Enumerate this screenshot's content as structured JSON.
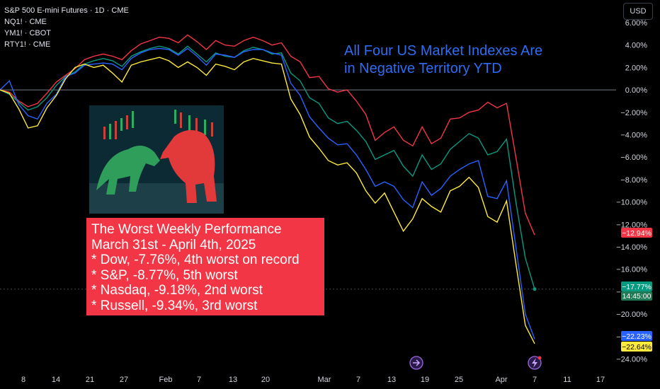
{
  "chart_data": {
    "type": "line",
    "symbols": [
      "S&P 500 E-mini Futures · 1D · CME",
      "NQ1! · CME",
      "YM1! · CBOT",
      "RTY1! · CME"
    ],
    "currency": "USD",
    "ylim": [
      -24,
      6
    ],
    "y_ticks": [
      "6.00%",
      "4.00%",
      "2.00%",
      "0.00%",
      "−2.00%",
      "−4.00%",
      "−6.00%",
      "−8.00%",
      "−10.00%",
      "−12.00%",
      "−14.00%",
      "−16.00%",
      "−18.00%",
      "−20.00%",
      "−22.00%",
      "−24.00%"
    ],
    "x_ticks": [
      "8",
      "14",
      "21",
      "27",
      "Feb",
      "7",
      "13",
      "20",
      "Mar",
      "7",
      "13",
      "19",
      "25",
      "Apr",
      "7",
      "11",
      "17"
    ],
    "series": [
      {
        "name": "YM1!",
        "color": "#f23645",
        "values": [
          0,
          -0.2,
          -1.0,
          -1.5,
          -1.2,
          -0.3,
          0.7,
          1.3,
          1.9,
          2.7,
          3.0,
          3.2,
          3.0,
          2.7,
          3.5,
          4.1,
          4.4,
          4.7,
          4.6,
          4.2,
          4.9,
          4.3,
          3.6,
          4.4,
          4.0,
          3.9,
          4.4,
          4.7,
          4.4,
          4.0,
          4.2,
          3.0,
          2.5,
          1.1,
          1.2,
          0.1,
          -0.2,
          0.0,
          -1.0,
          -2.2,
          -4.5,
          -3.8,
          -3.3,
          -4.5,
          -5.0,
          -3.3,
          -4.8,
          -4.3,
          -2.6,
          -2.5,
          -2.0,
          -1.8,
          -1.1,
          -1.6,
          -1.2,
          -6.0,
          -11.0,
          -12.94
        ],
        "last_label": "−12.94%"
      },
      {
        "name": "S&P 500",
        "color": "#089981",
        "values": [
          0,
          -0.4,
          -1.1,
          -1.8,
          -1.5,
          -0.7,
          0.4,
          1.2,
          1.6,
          2.3,
          2.6,
          2.8,
          2.6,
          2.1,
          3.0,
          3.4,
          3.7,
          3.9,
          3.7,
          3.2,
          3.9,
          3.2,
          2.5,
          3.3,
          3.0,
          2.9,
          3.5,
          3.8,
          3.6,
          3.2,
          3.3,
          1.5,
          0.8,
          -0.7,
          -1.2,
          -2.5,
          -3.0,
          -2.8,
          -3.6,
          -4.6,
          -6.2,
          -5.8,
          -5.4,
          -6.8,
          -7.7,
          -5.8,
          -7.1,
          -6.6,
          -5.3,
          -4.6,
          -3.9,
          -4.3,
          -5.8,
          -5.5,
          -4.4,
          -10.0,
          -15.0,
          -17.77
        ],
        "last_label": "−17.77%"
      },
      {
        "name": "NQ1!",
        "color": "#2962ff",
        "values": [
          0,
          0.8,
          -1.3,
          -2.3,
          -2.6,
          -1.2,
          -0.4,
          1.2,
          1.5,
          2.2,
          2.3,
          2.4,
          2.3,
          1.8,
          2.8,
          3.3,
          3.6,
          3.7,
          3.6,
          3.1,
          3.7,
          3.0,
          2.2,
          3.2,
          3.1,
          2.9,
          3.4,
          3.6,
          3.6,
          3.3,
          3.1,
          0.6,
          -0.5,
          -2.4,
          -3.4,
          -4.3,
          -4.9,
          -4.8,
          -5.8,
          -7.1,
          -8.6,
          -8.2,
          -8.6,
          -9.8,
          -10.5,
          -8.2,
          -9.4,
          -8.8,
          -7.7,
          -7.1,
          -6.6,
          -6.3,
          -9.5,
          -9.7,
          -8.1,
          -14.0,
          -20.0,
          -22.23
        ],
        "last_label": "−22.23%"
      },
      {
        "name": "RTY1!",
        "color": "#ffeb3b",
        "values": [
          0,
          -0.3,
          -1.7,
          -3.4,
          -3.2,
          -1.6,
          -0.5,
          1.0,
          2.0,
          2.3,
          2.0,
          2.2,
          1.5,
          0.7,
          2.2,
          2.5,
          2.7,
          2.9,
          2.6,
          2.0,
          2.5,
          2.0,
          1.3,
          2.3,
          2.1,
          1.8,
          2.5,
          2.8,
          2.6,
          2.4,
          2.3,
          -0.8,
          -2.2,
          -4.2,
          -5.2,
          -6.3,
          -6.7,
          -6.5,
          -7.4,
          -9.0,
          -10.1,
          -9.2,
          -10.9,
          -12.6,
          -11.5,
          -9.7,
          -10.4,
          -10.9,
          -9.0,
          -8.6,
          -7.8,
          -8.7,
          -11.3,
          -11.8,
          -9.9,
          -15.5,
          -21.0,
          -22.64
        ],
        "last_label": "−22.64%"
      }
    ],
    "crosshair_label": "14:45:00"
  },
  "headline": [
    "All Four US Market Indexes Are",
    "in Negative Territory YTD"
  ],
  "info_box": [
    "The Worst Weekly Performance",
    "March 31st - April 4th, 2025",
    "* Dow, -7.76%, 4th worst on record",
    "* S&P, -8.77%, 5th worst",
    "* Nasdaq, -9.18%, 2nd worst",
    "* Russell, -9.34%, 3rd worst"
  ],
  "icons": [
    "bull-and-bear-picture",
    "forward-arrow-event-icon",
    "lightning-event-icon"
  ]
}
